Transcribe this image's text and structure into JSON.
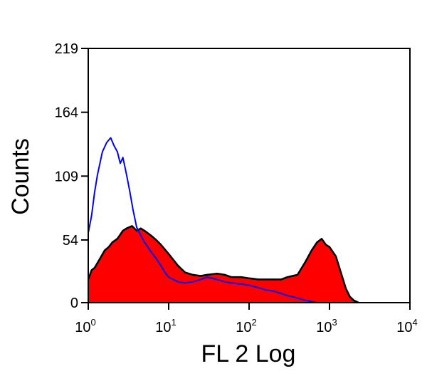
{
  "chart_data": {
    "type": "histogram",
    "xlabel": "FL 2 Log",
    "ylabel": "Counts",
    "x_scale": "log10",
    "xlim": [
      1,
      10000
    ],
    "ylim": [
      0,
      219
    ],
    "x_ticks": [
      {
        "value": 1,
        "base": "10",
        "exp": "0"
      },
      {
        "value": 10,
        "base": "10",
        "exp": "1"
      },
      {
        "value": 100,
        "base": "10",
        "exp": "2"
      },
      {
        "value": 1000,
        "base": "10",
        "exp": "3"
      },
      {
        "value": 10000,
        "base": "10",
        "exp": "4"
      }
    ],
    "y_ticks": [
      0,
      54,
      109,
      164,
      219
    ],
    "grid": false,
    "series": [
      {
        "style": "filled",
        "color": "#ff0000",
        "outline": "#000000",
        "x": [
          1,
          1.1,
          1.2,
          1.4,
          1.6,
          1.8,
          2,
          2.3,
          2.7,
          3,
          3.5,
          4,
          4.5,
          5,
          6,
          7,
          8,
          10,
          13,
          16,
          20,
          25,
          30,
          40,
          50,
          60,
          80,
          100,
          130,
          160,
          200,
          250,
          300,
          400,
          500,
          600,
          700,
          800,
          900,
          1000,
          1200,
          1400,
          1600,
          1800,
          2000,
          2300
        ],
        "values": [
          20,
          28,
          30,
          38,
          45,
          48,
          52,
          55,
          62,
          64,
          66,
          62,
          64,
          62,
          58,
          54,
          50,
          42,
          32,
          26,
          24,
          23,
          24,
          25,
          24,
          22,
          22,
          21,
          20,
          20,
          20,
          20,
          22,
          24,
          35,
          45,
          52,
          55,
          50,
          48,
          40,
          25,
          12,
          5,
          2,
          0
        ]
      },
      {
        "style": "line",
        "color": "#0000ff",
        "x": [
          1,
          1.1,
          1.2,
          1.3,
          1.5,
          1.7,
          1.9,
          2.1,
          2.3,
          2.5,
          2.7,
          3,
          3.3,
          3.6,
          4,
          4.5,
          5,
          5.5,
          6,
          7,
          8,
          9,
          10,
          13,
          16,
          20,
          25,
          30,
          40,
          50,
          60,
          80,
          100,
          130,
          160,
          200,
          250,
          300,
          350,
          400,
          500,
          600,
          700
        ],
        "values": [
          60,
          75,
          95,
          110,
          130,
          138,
          142,
          135,
          130,
          120,
          125,
          110,
          95,
          80,
          65,
          58,
          52,
          48,
          44,
          38,
          32,
          26,
          22,
          18,
          17,
          18,
          20,
          22,
          20,
          18,
          17,
          16,
          15,
          13,
          11,
          10,
          8,
          6,
          5,
          4,
          2,
          1,
          0
        ]
      }
    ]
  }
}
